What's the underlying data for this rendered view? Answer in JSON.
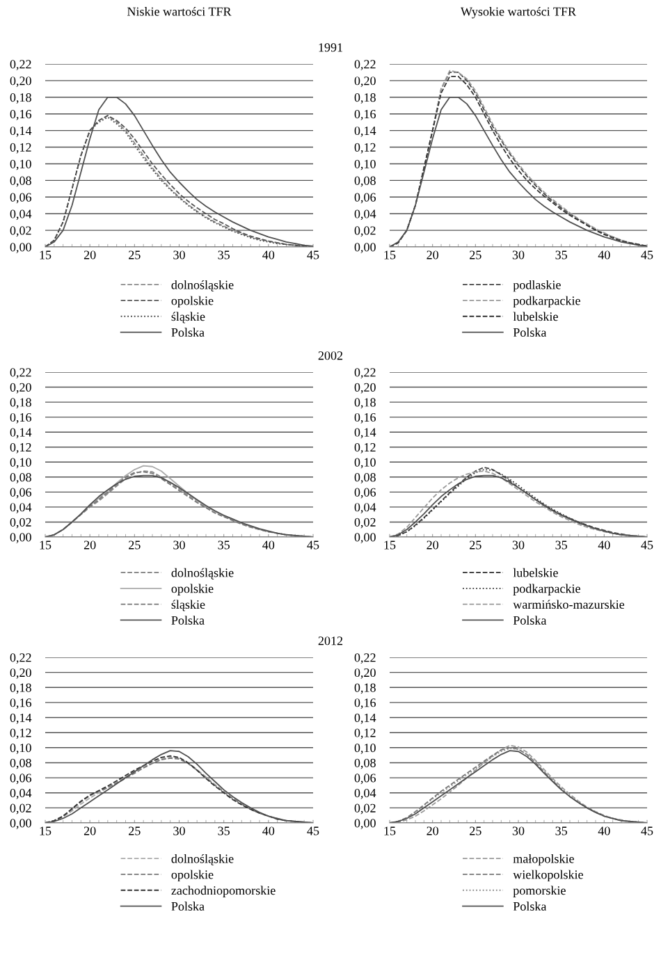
{
  "chart_data": [
    {
      "type": "line",
      "title": "Niskie wartości TFR",
      "annotations": [
        "1991"
      ],
      "x": [
        15,
        16,
        17,
        18,
        19,
        20,
        21,
        22,
        23,
        24,
        25,
        26,
        27,
        28,
        29,
        30,
        31,
        32,
        33,
        34,
        35,
        36,
        37,
        38,
        39,
        40,
        41,
        42,
        43,
        44,
        45
      ],
      "xlim": [
        15,
        45
      ],
      "xticks": [
        15,
        20,
        25,
        30,
        35,
        40,
        45
      ],
      "ylim": [
        0,
        0.22
      ],
      "yticks": [
        {
          "value": 0,
          "label": "0,00"
        },
        {
          "value": 0.02,
          "label": "0,02"
        },
        {
          "value": 0.04,
          "label": "0,04"
        },
        {
          "value": 0.06,
          "label": "0,06"
        },
        {
          "value": 0.08,
          "label": "0,08"
        },
        {
          "value": 0.1,
          "label": "0,10"
        },
        {
          "value": 0.12,
          "label": "0,12"
        },
        {
          "value": 0.14,
          "label": "0,14"
        },
        {
          "value": 0.16,
          "label": "0,16"
        },
        {
          "value": 0.18,
          "label": "0,18"
        },
        {
          "value": 0.2,
          "label": "0,20"
        },
        {
          "value": 0.22,
          "label": "0,22"
        }
      ],
      "grid": "y",
      "legend": "bottom",
      "series": [
        {
          "name": "dolnośląskie",
          "color": "#8a8a8a",
          "line_style": "dashed",
          "values": [
            0,
            0.008,
            0.03,
            0.07,
            0.11,
            0.14,
            0.152,
            0.158,
            0.15,
            0.14,
            0.125,
            0.11,
            0.095,
            0.082,
            0.07,
            0.06,
            0.051,
            0.043,
            0.036,
            0.03,
            0.025,
            0.02,
            0.016,
            0.012,
            0.009,
            0.007,
            0.005,
            0.003,
            0.002,
            0.001,
            0
          ]
        },
        {
          "name": "opolskie",
          "color": "#555555",
          "line_style": "dashed",
          "values": [
            0,
            0.008,
            0.03,
            0.07,
            0.11,
            0.14,
            0.152,
            0.158,
            0.152,
            0.143,
            0.13,
            0.115,
            0.1,
            0.087,
            0.075,
            0.064,
            0.055,
            0.047,
            0.04,
            0.033,
            0.028,
            0.022,
            0.017,
            0.013,
            0.01,
            0.007,
            0.005,
            0.003,
            0.002,
            0.001,
            0
          ]
        },
        {
          "name": "śląskie",
          "color": "#444444",
          "line_style": "dotted",
          "values": [
            0,
            0.008,
            0.03,
            0.07,
            0.11,
            0.14,
            0.15,
            0.156,
            0.148,
            0.138,
            0.122,
            0.107,
            0.093,
            0.08,
            0.069,
            0.059,
            0.05,
            0.042,
            0.035,
            0.029,
            0.024,
            0.019,
            0.015,
            0.011,
            0.008,
            0.006,
            0.004,
            0.003,
            0.002,
            0.001,
            0
          ]
        },
        {
          "name": "Polska",
          "color": "#505050",
          "line_style": "solid",
          "values": [
            0,
            0.006,
            0.02,
            0.05,
            0.09,
            0.13,
            0.165,
            0.18,
            0.18,
            0.172,
            0.158,
            0.14,
            0.122,
            0.105,
            0.09,
            0.078,
            0.067,
            0.057,
            0.049,
            0.042,
            0.036,
            0.03,
            0.025,
            0.02,
            0.016,
            0.012,
            0.009,
            0.006,
            0.004,
            0.002,
            0.001
          ]
        }
      ]
    },
    {
      "type": "line",
      "title": "Wysokie wartości TFR",
      "x": [
        15,
        16,
        17,
        18,
        19,
        20,
        21,
        22,
        23,
        24,
        25,
        26,
        27,
        28,
        29,
        30,
        31,
        32,
        33,
        34,
        35,
        36,
        37,
        38,
        39,
        40,
        41,
        42,
        43,
        44,
        45
      ],
      "xlim": [
        15,
        45
      ],
      "xticks": [
        15,
        20,
        25,
        30,
        35,
        40,
        45
      ],
      "ylim": [
        0,
        0.22
      ],
      "yticks": [
        {
          "value": 0,
          "label": "0,00"
        },
        {
          "value": 0.02,
          "label": "0,02"
        },
        {
          "value": 0.04,
          "label": "0,04"
        },
        {
          "value": 0.06,
          "label": "0,06"
        },
        {
          "value": 0.08,
          "label": "0,08"
        },
        {
          "value": 0.1,
          "label": "0,10"
        },
        {
          "value": 0.12,
          "label": "0,12"
        },
        {
          "value": 0.14,
          "label": "0,14"
        },
        {
          "value": 0.16,
          "label": "0,16"
        },
        {
          "value": 0.18,
          "label": "0,18"
        },
        {
          "value": 0.2,
          "label": "0,20"
        },
        {
          "value": 0.22,
          "label": "0,22"
        }
      ],
      "grid": "y",
      "legend": "bottom",
      "series": [
        {
          "name": "podlaskie",
          "color": "#444444",
          "line_style": "dashed",
          "values": [
            0,
            0.005,
            0.02,
            0.05,
            0.095,
            0.14,
            0.19,
            0.21,
            0.21,
            0.2,
            0.185,
            0.165,
            0.145,
            0.128,
            0.112,
            0.098,
            0.085,
            0.074,
            0.064,
            0.055,
            0.047,
            0.04,
            0.033,
            0.027,
            0.021,
            0.016,
            0.012,
            0.008,
            0.005,
            0.003,
            0.001
          ]
        },
        {
          "name": "podkarpackie",
          "color": "#9a9a9a",
          "line_style": "dashed",
          "values": [
            0,
            0.005,
            0.02,
            0.05,
            0.095,
            0.14,
            0.19,
            0.212,
            0.21,
            0.202,
            0.188,
            0.168,
            0.148,
            0.13,
            0.114,
            0.1,
            0.087,
            0.076,
            0.066,
            0.057,
            0.049,
            0.041,
            0.034,
            0.028,
            0.022,
            0.017,
            0.012,
            0.008,
            0.005,
            0.003,
            0.001
          ]
        },
        {
          "name": "lubelskie",
          "color": "#333333",
          "line_style": "dashed",
          "values": [
            0,
            0.005,
            0.02,
            0.05,
            0.095,
            0.14,
            0.185,
            0.205,
            0.205,
            0.195,
            0.18,
            0.16,
            0.14,
            0.122,
            0.106,
            0.092,
            0.08,
            0.07,
            0.061,
            0.053,
            0.045,
            0.038,
            0.032,
            0.026,
            0.02,
            0.015,
            0.011,
            0.007,
            0.005,
            0.003,
            0.001
          ]
        },
        {
          "name": "Polska",
          "color": "#505050",
          "line_style": "solid",
          "values": [
            0,
            0.006,
            0.02,
            0.05,
            0.09,
            0.13,
            0.165,
            0.18,
            0.18,
            0.172,
            0.158,
            0.14,
            0.122,
            0.105,
            0.09,
            0.078,
            0.067,
            0.057,
            0.049,
            0.042,
            0.036,
            0.03,
            0.025,
            0.02,
            0.016,
            0.012,
            0.009,
            0.006,
            0.004,
            0.002,
            0.001
          ]
        }
      ]
    },
    {
      "type": "line",
      "annotations": [
        "2002"
      ],
      "x": [
        15,
        16,
        17,
        18,
        19,
        20,
        21,
        22,
        23,
        24,
        25,
        26,
        27,
        28,
        29,
        30,
        31,
        32,
        33,
        34,
        35,
        36,
        37,
        38,
        39,
        40,
        41,
        42,
        43,
        44,
        45
      ],
      "xlim": [
        15,
        45
      ],
      "xticks": [
        15,
        20,
        25,
        30,
        35,
        40,
        45
      ],
      "ylim": [
        0,
        0.22
      ],
      "yticks": [
        {
          "value": 0,
          "label": "0,00"
        },
        {
          "value": 0.02,
          "label": "0,02"
        },
        {
          "value": 0.04,
          "label": "0,04"
        },
        {
          "value": 0.06,
          "label": "0,06"
        },
        {
          "value": 0.08,
          "label": "0,08"
        },
        {
          "value": 0.1,
          "label": "0,10"
        },
        {
          "value": 0.12,
          "label": "0,12"
        },
        {
          "value": 0.14,
          "label": "0,14"
        },
        {
          "value": 0.16,
          "label": "0,16"
        },
        {
          "value": 0.18,
          "label": "0,18"
        },
        {
          "value": 0.2,
          "label": "0,20"
        },
        {
          "value": 0.22,
          "label": "0,22"
        }
      ],
      "grid": "y",
      "legend": "bottom",
      "series": [
        {
          "name": "dolnośląskie",
          "color": "#8a8a8a",
          "line_style": "dashed",
          "values": [
            0,
            0.003,
            0.01,
            0.02,
            0.03,
            0.04,
            0.048,
            0.058,
            0.068,
            0.078,
            0.085,
            0.088,
            0.087,
            0.08,
            0.072,
            0.064,
            0.056,
            0.048,
            0.04,
            0.034,
            0.028,
            0.023,
            0.018,
            0.014,
            0.01,
            0.007,
            0.005,
            0.003,
            0.002,
            0.001,
            0
          ]
        },
        {
          "name": "opolskie",
          "color": "#aaaaaa",
          "line_style": "solid",
          "values": [
            0,
            0.003,
            0.01,
            0.02,
            0.03,
            0.042,
            0.052,
            0.062,
            0.072,
            0.082,
            0.09,
            0.095,
            0.094,
            0.088,
            0.078,
            0.068,
            0.058,
            0.049,
            0.041,
            0.034,
            0.028,
            0.023,
            0.018,
            0.014,
            0.01,
            0.007,
            0.005,
            0.003,
            0.002,
            0.001,
            0
          ]
        },
        {
          "name": "śląskie",
          "color": "#777777",
          "line_style": "dashed",
          "values": [
            0,
            0.003,
            0.01,
            0.02,
            0.03,
            0.041,
            0.05,
            0.06,
            0.07,
            0.08,
            0.086,
            0.087,
            0.085,
            0.078,
            0.07,
            0.062,
            0.054,
            0.046,
            0.039,
            0.032,
            0.027,
            0.022,
            0.017,
            0.013,
            0.01,
            0.007,
            0.005,
            0.003,
            0.002,
            0.001,
            0
          ]
        },
        {
          "name": "Polska",
          "color": "#505050",
          "line_style": "solid",
          "values": [
            0,
            0.003,
            0.01,
            0.02,
            0.031,
            0.043,
            0.054,
            0.063,
            0.071,
            0.077,
            0.081,
            0.082,
            0.082,
            0.079,
            0.073,
            0.066,
            0.058,
            0.05,
            0.042,
            0.035,
            0.029,
            0.024,
            0.019,
            0.015,
            0.011,
            0.008,
            0.005,
            0.003,
            0.002,
            0.001,
            0
          ]
        }
      ]
    },
    {
      "type": "line",
      "x": [
        15,
        16,
        17,
        18,
        19,
        20,
        21,
        22,
        23,
        24,
        25,
        26,
        27,
        28,
        29,
        30,
        31,
        32,
        33,
        34,
        35,
        36,
        37,
        38,
        39,
        40,
        41,
        42,
        43,
        44,
        45
      ],
      "xlim": [
        15,
        45
      ],
      "xticks": [
        15,
        20,
        25,
        30,
        35,
        40,
        45
      ],
      "ylim": [
        0,
        0.22
      ],
      "yticks": [
        {
          "value": 0,
          "label": "0,00"
        },
        {
          "value": 0.02,
          "label": "0,02"
        },
        {
          "value": 0.04,
          "label": "0,04"
        },
        {
          "value": 0.06,
          "label": "0,06"
        },
        {
          "value": 0.08,
          "label": "0,08"
        },
        {
          "value": 0.1,
          "label": "0,10"
        },
        {
          "value": 0.12,
          "label": "0,12"
        },
        {
          "value": 0.14,
          "label": "0,14"
        },
        {
          "value": 0.16,
          "label": "0,16"
        },
        {
          "value": 0.18,
          "label": "0,18"
        },
        {
          "value": 0.2,
          "label": "0,20"
        },
        {
          "value": 0.22,
          "label": "0,22"
        }
      ],
      "grid": "y",
      "legend": "bottom",
      "series": [
        {
          "name": "lubelskie",
          "color": "#444444",
          "line_style": "dashed",
          "values": [
            0,
            0.002,
            0.007,
            0.016,
            0.026,
            0.037,
            0.048,
            0.059,
            0.07,
            0.08,
            0.088,
            0.093,
            0.09,
            0.083,
            0.075,
            0.066,
            0.058,
            0.05,
            0.043,
            0.036,
            0.03,
            0.025,
            0.02,
            0.016,
            0.012,
            0.009,
            0.006,
            0.004,
            0.002,
            0.001,
            0
          ]
        },
        {
          "name": "podkarpackie",
          "color": "#333333",
          "line_style": "dotted",
          "values": [
            0,
            0.002,
            0.007,
            0.015,
            0.025,
            0.036,
            0.047,
            0.058,
            0.068,
            0.078,
            0.086,
            0.09,
            0.089,
            0.084,
            0.077,
            0.069,
            0.06,
            0.052,
            0.044,
            0.037,
            0.031,
            0.025,
            0.02,
            0.015,
            0.011,
            0.008,
            0.005,
            0.003,
            0.002,
            0.001,
            0
          ]
        },
        {
          "name": "warmińsko-mazurskie",
          "color": "#999999",
          "line_style": "dashed",
          "values": [
            0,
            0.004,
            0.013,
            0.026,
            0.039,
            0.052,
            0.063,
            0.072,
            0.079,
            0.084,
            0.087,
            0.088,
            0.085,
            0.079,
            0.071,
            0.063,
            0.055,
            0.047,
            0.04,
            0.033,
            0.027,
            0.022,
            0.017,
            0.013,
            0.01,
            0.007,
            0.005,
            0.003,
            0.002,
            0.001,
            0
          ]
        },
        {
          "name": "Polska",
          "color": "#505050",
          "line_style": "solid",
          "values": [
            0,
            0.003,
            0.01,
            0.02,
            0.031,
            0.043,
            0.054,
            0.063,
            0.071,
            0.077,
            0.081,
            0.082,
            0.082,
            0.079,
            0.073,
            0.066,
            0.058,
            0.05,
            0.042,
            0.035,
            0.029,
            0.024,
            0.019,
            0.015,
            0.011,
            0.008,
            0.005,
            0.003,
            0.002,
            0.001,
            0
          ]
        }
      ]
    },
    {
      "type": "line",
      "annotations": [
        "2012"
      ],
      "x": [
        15,
        16,
        17,
        18,
        19,
        20,
        21,
        22,
        23,
        24,
        25,
        26,
        27,
        28,
        29,
        30,
        31,
        32,
        33,
        34,
        35,
        36,
        37,
        38,
        39,
        40,
        41,
        42,
        43,
        44,
        45
      ],
      "xlim": [
        15,
        45
      ],
      "xticks": [
        15,
        20,
        25,
        30,
        35,
        40,
        45
      ],
      "ylim": [
        0,
        0.22
      ],
      "yticks": [
        {
          "value": 0,
          "label": "0,00"
        },
        {
          "value": 0.02,
          "label": "0,02"
        },
        {
          "value": 0.04,
          "label": "0,04"
        },
        {
          "value": 0.06,
          "label": "0,06"
        },
        {
          "value": 0.08,
          "label": "0,08"
        },
        {
          "value": 0.1,
          "label": "0,10"
        },
        {
          "value": 0.12,
          "label": "0,12"
        },
        {
          "value": 0.14,
          "label": "0,14"
        },
        {
          "value": 0.16,
          "label": "0,16"
        },
        {
          "value": 0.18,
          "label": "0,18"
        },
        {
          "value": 0.2,
          "label": "0,20"
        },
        {
          "value": 0.22,
          "label": "0,22"
        }
      ],
      "grid": "y",
      "legend": "bottom",
      "series": [
        {
          "name": "dolnośląskie",
          "color": "#aaaaaa",
          "line_style": "dashed",
          "values": [
            0,
            0.003,
            0.008,
            0.016,
            0.025,
            0.033,
            0.04,
            0.047,
            0.054,
            0.061,
            0.068,
            0.074,
            0.08,
            0.085,
            0.087,
            0.086,
            0.08,
            0.071,
            0.061,
            0.051,
            0.042,
            0.033,
            0.026,
            0.019,
            0.013,
            0.009,
            0.006,
            0.003,
            0.002,
            0.001,
            0
          ]
        },
        {
          "name": "opolskie",
          "color": "#777777",
          "line_style": "dashed",
          "values": [
            0,
            0.003,
            0.009,
            0.018,
            0.028,
            0.036,
            0.042,
            0.047,
            0.053,
            0.059,
            0.066,
            0.073,
            0.079,
            0.084,
            0.086,
            0.085,
            0.079,
            0.07,
            0.06,
            0.05,
            0.041,
            0.032,
            0.025,
            0.018,
            0.013,
            0.009,
            0.005,
            0.003,
            0.002,
            0.001,
            0
          ]
        },
        {
          "name": "zachodniopomorskie",
          "color": "#333333",
          "line_style": "dashed",
          "values": [
            0,
            0.003,
            0.009,
            0.019,
            0.029,
            0.037,
            0.043,
            0.049,
            0.056,
            0.063,
            0.07,
            0.076,
            0.082,
            0.087,
            0.089,
            0.087,
            0.08,
            0.07,
            0.059,
            0.049,
            0.04,
            0.031,
            0.024,
            0.018,
            0.013,
            0.009,
            0.005,
            0.003,
            0.002,
            0.001,
            0
          ]
        },
        {
          "name": "Polska",
          "color": "#505050",
          "line_style": "solid",
          "values": [
            0,
            0.002,
            0.006,
            0.012,
            0.02,
            0.028,
            0.036,
            0.044,
            0.052,
            0.06,
            0.068,
            0.076,
            0.084,
            0.091,
            0.096,
            0.095,
            0.088,
            0.078,
            0.066,
            0.055,
            0.044,
            0.035,
            0.027,
            0.02,
            0.014,
            0.009,
            0.006,
            0.003,
            0.002,
            0.001,
            0
          ]
        }
      ]
    },
    {
      "type": "line",
      "x": [
        15,
        16,
        17,
        18,
        19,
        20,
        21,
        22,
        23,
        24,
        25,
        26,
        27,
        28,
        29,
        30,
        31,
        32,
        33,
        34,
        35,
        36,
        37,
        38,
        39,
        40,
        41,
        42,
        43,
        44,
        45
      ],
      "xlim": [
        15,
        45
      ],
      "xticks": [
        15,
        20,
        25,
        30,
        35,
        40,
        45
      ],
      "ylim": [
        0,
        0.22
      ],
      "yticks": [
        {
          "value": 0,
          "label": "0,00"
        },
        {
          "value": 0.02,
          "label": "0,02"
        },
        {
          "value": 0.04,
          "label": "0,04"
        },
        {
          "value": 0.06,
          "label": "0,06"
        },
        {
          "value": 0.08,
          "label": "0,08"
        },
        {
          "value": 0.1,
          "label": "0,10"
        },
        {
          "value": 0.12,
          "label": "0,12"
        },
        {
          "value": 0.14,
          "label": "0,14"
        },
        {
          "value": 0.16,
          "label": "0,16"
        },
        {
          "value": 0.18,
          "label": "0,18"
        },
        {
          "value": 0.2,
          "label": "0,20"
        },
        {
          "value": 0.22,
          "label": "0,22"
        }
      ],
      "grid": "y",
      "legend": "bottom",
      "series": [
        {
          "name": "małopolskie",
          "color": "#999999",
          "line_style": "dashed",
          "values": [
            0,
            0.001,
            0.004,
            0.009,
            0.016,
            0.024,
            0.032,
            0.041,
            0.05,
            0.06,
            0.07,
            0.08,
            0.089,
            0.097,
            0.103,
            0.101,
            0.094,
            0.083,
            0.071,
            0.059,
            0.048,
            0.038,
            0.029,
            0.021,
            0.015,
            0.01,
            0.006,
            0.004,
            0.002,
            0.001,
            0
          ]
        },
        {
          "name": "wielkopolskie",
          "color": "#777777",
          "line_style": "dashed",
          "values": [
            0,
            0.002,
            0.007,
            0.015,
            0.024,
            0.033,
            0.042,
            0.05,
            0.058,
            0.066,
            0.074,
            0.082,
            0.09,
            0.097,
            0.1,
            0.098,
            0.091,
            0.08,
            0.068,
            0.056,
            0.045,
            0.035,
            0.027,
            0.02,
            0.014,
            0.009,
            0.006,
            0.003,
            0.002,
            0.001,
            0
          ]
        },
        {
          "name": "pomorskie",
          "color": "#888888",
          "line_style": "dotted",
          "values": [
            0,
            0.002,
            0.007,
            0.014,
            0.023,
            0.032,
            0.04,
            0.048,
            0.056,
            0.064,
            0.072,
            0.08,
            0.088,
            0.095,
            0.099,
            0.098,
            0.091,
            0.08,
            0.068,
            0.057,
            0.046,
            0.036,
            0.027,
            0.02,
            0.014,
            0.009,
            0.006,
            0.003,
            0.002,
            0.001,
            0
          ]
        },
        {
          "name": "Polska",
          "color": "#505050",
          "line_style": "solid",
          "values": [
            0,
            0.002,
            0.006,
            0.012,
            0.02,
            0.028,
            0.036,
            0.044,
            0.052,
            0.06,
            0.068,
            0.076,
            0.084,
            0.091,
            0.096,
            0.095,
            0.088,
            0.078,
            0.066,
            0.055,
            0.044,
            0.035,
            0.027,
            0.02,
            0.014,
            0.009,
            0.006,
            0.003,
            0.002,
            0.001,
            0
          ]
        }
      ]
    }
  ]
}
